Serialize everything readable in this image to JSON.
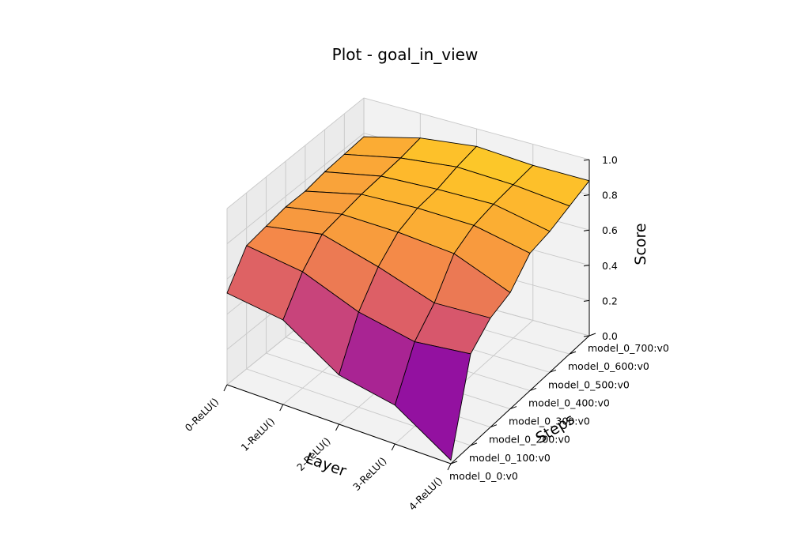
{
  "chart_data": {
    "type": "surface3d",
    "title": "Plot - goal_in_view",
    "xlabel": "Layer",
    "ylabel": "Steps",
    "zlabel": "Score",
    "x_categories": [
      "0-ReLU()",
      "1-ReLU()",
      "2-ReLU()",
      "3-ReLU()",
      "4-ReLU()"
    ],
    "y_categories": [
      "model_0_0:v0",
      "model_0_100:v0",
      "model_0_200:v0",
      "model_0_300:v0",
      "model_0_400:v0",
      "model_0_500:v0",
      "model_0_600:v0",
      "model_0_700:v0"
    ],
    "zlim": [
      0,
      1
    ],
    "z_ticks": [
      "0.0",
      "0.2",
      "0.4",
      "0.6",
      "0.8",
      "1.0"
    ],
    "colormap": "plasma",
    "grid": true,
    "values": [
      [
        0.52,
        0.7,
        0.72,
        0.74,
        0.74,
        0.76,
        0.77,
        0.78
      ],
      [
        0.48,
        0.66,
        0.78,
        0.8,
        0.82,
        0.83,
        0.84,
        0.86
      ],
      [
        0.28,
        0.54,
        0.7,
        0.8,
        0.84,
        0.85,
        0.88,
        0.9
      ],
      [
        0.22,
        0.48,
        0.6,
        0.78,
        0.84,
        0.86,
        0.87,
        0.88
      ],
      [
        0.02,
        0.52,
        0.62,
        0.66,
        0.78,
        0.8,
        0.84,
        0.88
      ]
    ]
  }
}
